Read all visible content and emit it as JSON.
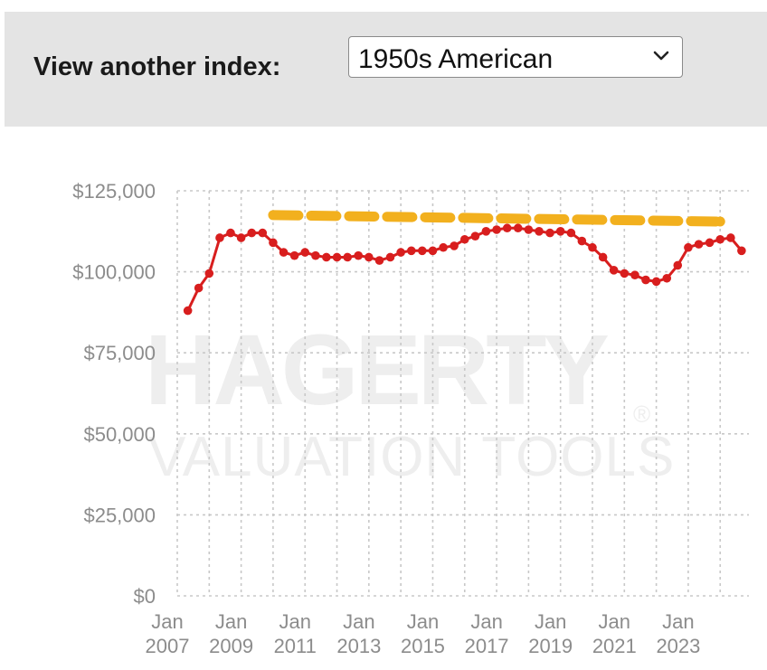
{
  "header": {
    "index_label": "View another index:",
    "index_selected": "1950s American"
  },
  "watermark": {
    "brand": "HAGERTY",
    "registered": "®",
    "tagline": "VALUATION TOOLS"
  },
  "colors": {
    "series_line": "#d81e1e",
    "reference_line": "#f2b01e",
    "grid": "#c8c8c8",
    "tick_text": "#8c8c8c",
    "header_bg": "#e4e4e4"
  },
  "chart_data": {
    "type": "line",
    "title": "",
    "xlabel": "",
    "ylabel": "",
    "ylim": [
      0,
      125000
    ],
    "yticks": [
      {
        "value": 0,
        "label": "$0"
      },
      {
        "value": 25000,
        "label": "$25,000"
      },
      {
        "value": 50000,
        "label": "$50,000"
      },
      {
        "value": 75000,
        "label": "$75,000"
      },
      {
        "value": 100000,
        "label": "$100,000"
      },
      {
        "value": 125000,
        "label": "$125,000"
      }
    ],
    "xlim": [
      2007.0,
      2024.9
    ],
    "xticks": [
      {
        "value": 2007,
        "line1": "Jan",
        "line2": "2007"
      },
      {
        "value": 2009,
        "line1": "Jan",
        "line2": "2009"
      },
      {
        "value": 2011,
        "line1": "Jan",
        "line2": "2011"
      },
      {
        "value": 2013,
        "line1": "Jan",
        "line2": "2013"
      },
      {
        "value": 2015,
        "line1": "Jan",
        "line2": "2015"
      },
      {
        "value": 2017,
        "line1": "Jan",
        "line2": "2017"
      },
      {
        "value": 2019,
        "line1": "Jan",
        "line2": "2019"
      },
      {
        "value": 2021,
        "line1": "Jan",
        "line2": "2021"
      },
      {
        "value": 2023,
        "line1": "Jan",
        "line2": "2023"
      }
    ],
    "gridlines_x": [
      2007,
      2008,
      2009,
      2010,
      2011,
      2012,
      2013,
      2014,
      2015,
      2016,
      2017,
      2018,
      2019,
      2020,
      2021,
      2022,
      2023,
      2024
    ],
    "grid": true,
    "series": [
      {
        "points": [
          [
            2007.33,
            88000
          ],
          [
            2007.67,
            95000
          ],
          [
            2008.0,
            99500
          ],
          [
            2008.33,
            110500
          ],
          [
            2008.67,
            112000
          ],
          [
            2009.0,
            110500
          ],
          [
            2009.33,
            112000
          ],
          [
            2009.67,
            112000
          ],
          [
            2010.0,
            109000
          ],
          [
            2010.33,
            106000
          ],
          [
            2010.67,
            105000
          ],
          [
            2011.0,
            106000
          ],
          [
            2011.33,
            105000
          ],
          [
            2011.67,
            104500
          ],
          [
            2012.0,
            104500
          ],
          [
            2012.33,
            104500
          ],
          [
            2012.67,
            105000
          ],
          [
            2013.0,
            104500
          ],
          [
            2013.33,
            103500
          ],
          [
            2013.67,
            104500
          ],
          [
            2014.0,
            106000
          ],
          [
            2014.33,
            106500
          ],
          [
            2014.67,
            106500
          ],
          [
            2015.0,
            106500
          ],
          [
            2015.33,
            107500
          ],
          [
            2015.67,
            108000
          ],
          [
            2016.0,
            110000
          ],
          [
            2016.33,
            111000
          ],
          [
            2016.67,
            112500
          ],
          [
            2017.0,
            113000
          ],
          [
            2017.33,
            113500
          ],
          [
            2017.67,
            113500
          ],
          [
            2018.0,
            113000
          ],
          [
            2018.33,
            112500
          ],
          [
            2018.67,
            112000
          ],
          [
            2019.0,
            112500
          ],
          [
            2019.33,
            112000
          ],
          [
            2019.67,
            109500
          ],
          [
            2020.0,
            107500
          ],
          [
            2020.33,
            104500
          ],
          [
            2020.67,
            100500
          ],
          [
            2021.0,
            99500
          ],
          [
            2021.33,
            99000
          ],
          [
            2021.67,
            97500
          ],
          [
            2022.0,
            97000
          ],
          [
            2022.33,
            98000
          ],
          [
            2022.67,
            102000
          ],
          [
            2023.0,
            107500
          ],
          [
            2023.33,
            108500
          ],
          [
            2023.67,
            109000
          ],
          [
            2024.0,
            110000
          ],
          [
            2024.33,
            110500
          ],
          [
            2024.67,
            106500
          ]
        ]
      },
      {
        "style": "dashed",
        "points": [
          [
            2010.0,
            117500
          ],
          [
            2024.0,
            115500
          ]
        ]
      }
    ]
  }
}
